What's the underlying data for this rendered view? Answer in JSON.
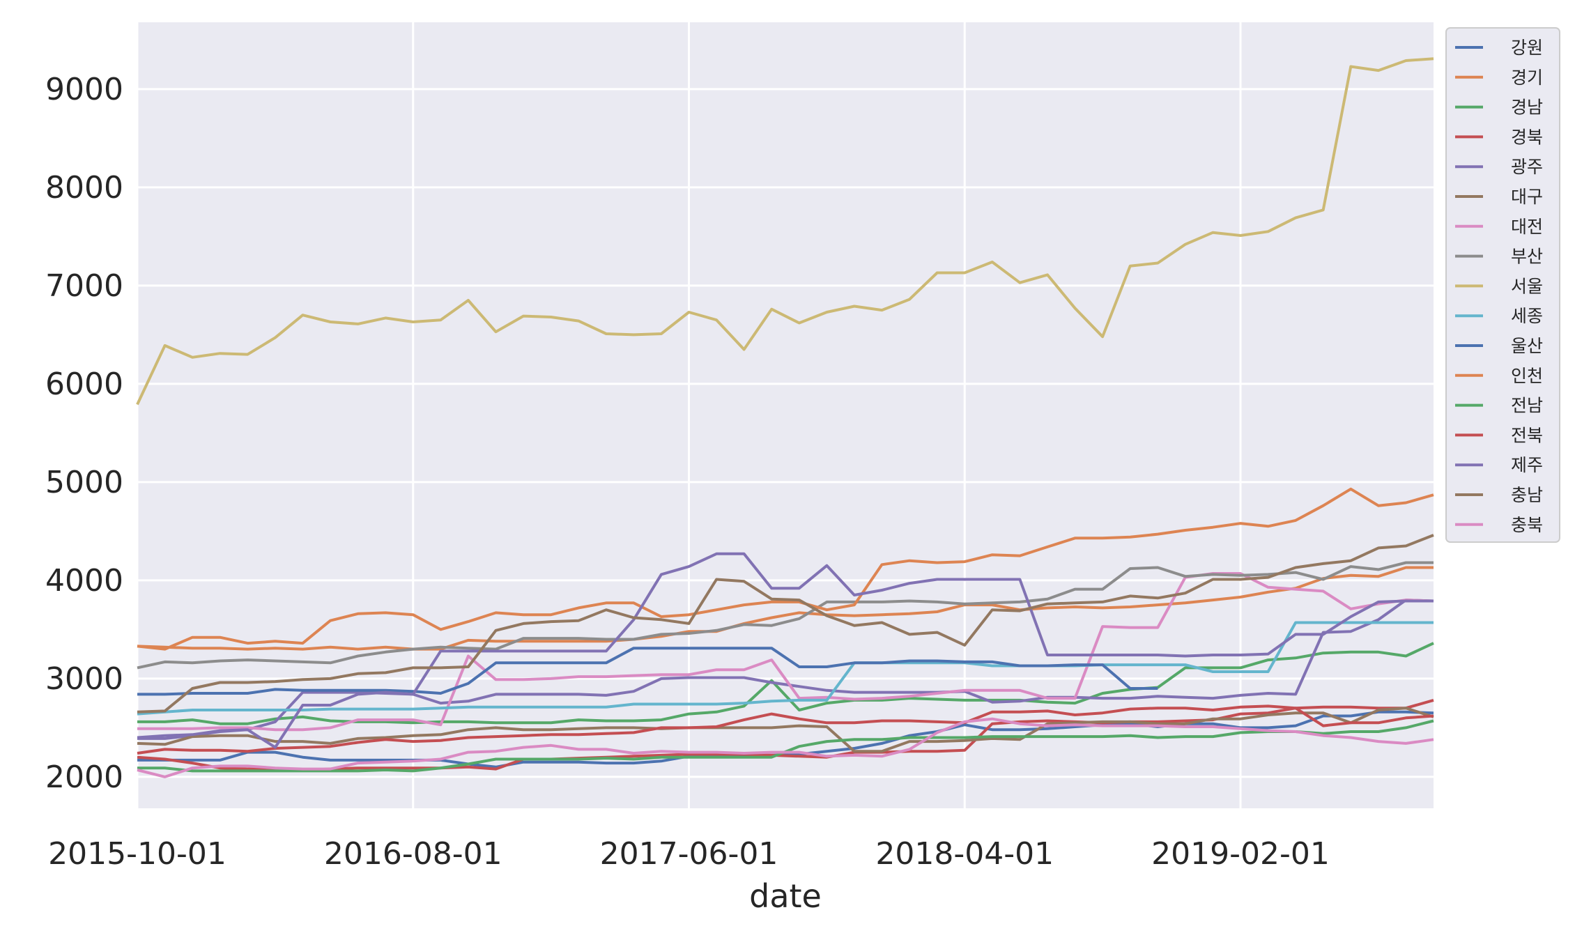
{
  "chart_data": {
    "type": "line",
    "title": "",
    "xlabel": "date",
    "ylabel": "",
    "x_tick_labels": [
      "2015-10-01",
      "2016-08-01",
      "2017-06-01",
      "2018-04-01",
      "2019-02-01"
    ],
    "x_tick_index": [
      0,
      10,
      20,
      30,
      40
    ],
    "x_range": [
      0,
      47
    ],
    "y_ticks": [
      2000,
      3000,
      4000,
      5000,
      6000,
      7000,
      8000,
      9000
    ],
    "ylim": [
      1680,
      9680
    ],
    "grid": true,
    "legend_position": "right",
    "series": [
      {
        "name": "강원",
        "color": "#4c72b0",
        "values": [
          2170,
          2170,
          2170,
          2170,
          2250,
          2250,
          2200,
          2170,
          2170,
          2170,
          2170,
          2170,
          2130,
          2100,
          2150,
          2150,
          2150,
          2140,
          2140,
          2160,
          2210,
          2210,
          2220,
          2220,
          2230,
          2260,
          2290,
          2340,
          2420,
          2460,
          2530,
          2480,
          2480,
          2490,
          2510,
          2530,
          2540,
          2510,
          2540,
          2540,
          2500,
          2500,
          2520,
          2620,
          2620,
          2660,
          2660,
          2650
        ]
      },
      {
        "name": "경기",
        "color": "#dd8452",
        "values": [
          3330,
          3320,
          3310,
          3310,
          3300,
          3310,
          3300,
          3320,
          3300,
          3320,
          3300,
          3300,
          3390,
          3380,
          3380,
          3380,
          3380,
          3380,
          3400,
          3430,
          3480,
          3480,
          3560,
          3620,
          3670,
          3650,
          3640,
          3650,
          3660,
          3680,
          3750,
          3750,
          3700,
          3720,
          3730,
          3720,
          3730,
          3750,
          3770,
          3800,
          3830,
          3880,
          3920,
          4020,
          4050,
          4040,
          4130,
          4130
        ]
      },
      {
        "name": "경남",
        "color": "#55a868",
        "values": [
          2560,
          2560,
          2580,
          2540,
          2540,
          2590,
          2610,
          2570,
          2560,
          2560,
          2550,
          2560,
          2560,
          2550,
          2550,
          2550,
          2580,
          2570,
          2570,
          2580,
          2640,
          2660,
          2720,
          2980,
          2680,
          2750,
          2780,
          2780,
          2800,
          2790,
          2780,
          2780,
          2780,
          2760,
          2750,
          2850,
          2890,
          2910,
          3110,
          3110,
          3110,
          3190,
          3210,
          3260,
          3270,
          3270,
          3230,
          3360
        ]
      },
      {
        "name": "경북",
        "color": "#c44e52",
        "values": [
          2200,
          2180,
          2140,
          2090,
          2080,
          2080,
          2070,
          2080,
          2090,
          2090,
          2090,
          2090,
          2100,
          2080,
          2180,
          2180,
          2190,
          2200,
          2210,
          2220,
          2230,
          2230,
          2230,
          2220,
          2210,
          2200,
          2250,
          2250,
          2260,
          2260,
          2270,
          2540,
          2560,
          2570,
          2560,
          2550,
          2560,
          2560,
          2570,
          2580,
          2640,
          2650,
          2700,
          2710,
          2710,
          2700,
          2700,
          2780
        ]
      },
      {
        "name": "광주",
        "color": "#8172b3",
        "values": [
          2390,
          2390,
          2420,
          2460,
          2480,
          2560,
          2860,
          2860,
          2860,
          2850,
          2840,
          2750,
          2770,
          2840,
          2840,
          2840,
          2840,
          2830,
          2870,
          3000,
          3010,
          3010,
          3010,
          2960,
          2920,
          2880,
          2860,
          2860,
          2860,
          2860,
          2870,
          2760,
          2770,
          2810,
          2810,
          2800,
          2800,
          2820,
          2810,
          2800,
          2830,
          2850,
          2840,
          3470,
          3480,
          3600,
          3800,
          3790
        ]
      },
      {
        "name": "대구",
        "color": "#937860",
        "values": [
          2340,
          2330,
          2410,
          2420,
          2420,
          2360,
          2360,
          2340,
          2390,
          2400,
          2420,
          2430,
          2480,
          2500,
          2480,
          2480,
          2490,
          2500,
          2500,
          2490,
          2500,
          2500,
          2500,
          2500,
          2520,
          2510,
          2260,
          2260,
          2360,
          2360,
          2370,
          2390,
          2380,
          2540,
          2550,
          2560,
          2560,
          2540,
          2540,
          2590,
          2590,
          2630,
          2650,
          2650,
          2550,
          2680,
          2700,
          2610
        ]
      },
      {
        "name": "대전",
        "color": "#da8bc3",
        "values": [
          2490,
          2490,
          2490,
          2500,
          2500,
          2480,
          2480,
          2500,
          2580,
          2580,
          2580,
          2530,
          3230,
          2990,
          2990,
          3000,
          3020,
          3020,
          3030,
          3040,
          3040,
          3090,
          3090,
          3190,
          2800,
          2810,
          2790,
          2800,
          2820,
          2850,
          2880,
          2880,
          2880,
          2800,
          2800,
          3530,
          3520,
          3520,
          4030,
          4070,
          4070,
          3930,
          3910,
          3890,
          3710,
          3760,
          3800,
          3790
        ]
      },
      {
        "name": "부산",
        "color": "#8c8c8c",
        "values": [
          3110,
          3170,
          3160,
          3180,
          3190,
          3180,
          3170,
          3160,
          3230,
          3270,
          3300,
          3320,
          3310,
          3300,
          3410,
          3410,
          3410,
          3400,
          3400,
          3450,
          3460,
          3490,
          3550,
          3540,
          3610,
          3780,
          3780,
          3780,
          3790,
          3780,
          3760,
          3770,
          3780,
          3810,
          3910,
          3910,
          4120,
          4130,
          4040,
          4060,
          4050,
          4060,
          4080,
          4010,
          4140,
          4110,
          4180,
          4180
        ]
      },
      {
        "name": "서울",
        "color": "#ccb974",
        "values": [
          5790,
          6390,
          6270,
          6310,
          6300,
          6470,
          6700,
          6630,
          6610,
          6670,
          6630,
          6650,
          6850,
          6530,
          6690,
          6680,
          6640,
          6510,
          6500,
          6510,
          6730,
          6650,
          6350,
          6760,
          6620,
          6730,
          6790,
          6750,
          6860,
          7130,
          7130,
          7240,
          7030,
          7110,
          6770,
          6480,
          7200,
          7230,
          7420,
          7540,
          7510,
          7550,
          7690,
          7770,
          9230,
          9190,
          9290,
          9310
        ]
      },
      {
        "name": "세종",
        "color": "#64b5cd",
        "values": [
          2640,
          2660,
          2680,
          2680,
          2680,
          2680,
          2680,
          2690,
          2690,
          2690,
          2690,
          2700,
          2710,
          2710,
          2710,
          2710,
          2710,
          2710,
          2740,
          2740,
          2740,
          2740,
          2750,
          2770,
          2780,
          2780,
          3160,
          3160,
          3160,
          3160,
          3160,
          3130,
          3130,
          3130,
          3130,
          3140,
          3140,
          3140,
          3140,
          3070,
          3070,
          3070,
          3570,
          3570,
          3570,
          3570,
          3570,
          3570
        ]
      },
      {
        "name": "울산",
        "color": "#4c72b0",
        "values": [
          2840,
          2840,
          2850,
          2850,
          2850,
          2890,
          2880,
          2880,
          2880,
          2880,
          2870,
          2850,
          2950,
          3160,
          3160,
          3160,
          3160,
          3160,
          3310,
          3310,
          3310,
          3310,
          3310,
          3310,
          3120,
          3120,
          3160,
          3160,
          3180,
          3180,
          3170,
          3170,
          3130,
          3130,
          3140,
          3140,
          2900,
          2900,
          null,
          null,
          null,
          null,
          null,
          null,
          null,
          null,
          null,
          null
        ]
      },
      {
        "name": "인천",
        "color": "#dd8452",
        "values": [
          3330,
          3300,
          3420,
          3420,
          3360,
          3380,
          3360,
          3590,
          3660,
          3670,
          3650,
          3500,
          3580,
          3670,
          3650,
          3650,
          3720,
          3770,
          3770,
          3630,
          3650,
          3700,
          3750,
          3780,
          3780,
          3700,
          3750,
          4160,
          4200,
          4180,
          4190,
          4260,
          4250,
          4340,
          4430,
          4430,
          4440,
          4470,
          4510,
          4540,
          4580,
          4550,
          4610,
          4760,
          4930,
          4760,
          4790,
          4870
        ]
      },
      {
        "name": "전남",
        "color": "#55a868",
        "values": [
          2090,
          2090,
          2060,
          2060,
          2060,
          2060,
          2060,
          2060,
          2060,
          2070,
          2060,
          2090,
          2130,
          2180,
          2180,
          2180,
          2180,
          2190,
          2180,
          2200,
          2200,
          2200,
          2200,
          2200,
          2310,
          2360,
          2380,
          2380,
          2400,
          2400,
          2400,
          2410,
          2410,
          2410,
          2410,
          2410,
          2420,
          2400,
          2410,
          2410,
          2450,
          2460,
          2460,
          2440,
          2460,
          2460,
          2500,
          2570
        ]
      },
      {
        "name": "전북",
        "color": "#c44e52",
        "values": [
          2240,
          2280,
          2270,
          2270,
          2260,
          2290,
          2300,
          2310,
          2350,
          2380,
          2360,
          2370,
          2400,
          2410,
          2420,
          2430,
          2430,
          2440,
          2450,
          2500,
          2500,
          2510,
          2580,
          2640,
          2590,
          2550,
          2550,
          2570,
          2570,
          2560,
          2550,
          2660,
          2660,
          2670,
          2630,
          2650,
          2690,
          2700,
          2700,
          2680,
          2710,
          2720,
          2700,
          2520,
          2550,
          2550,
          2600,
          2620
        ]
      },
      {
        "name": "제주",
        "color": "#8172b3",
        "values": [
          2400,
          2420,
          2430,
          2470,
          2480,
          2300,
          2730,
          2730,
          2840,
          2860,
          2840,
          3280,
          3280,
          3280,
          3280,
          3280,
          3280,
          3280,
          3600,
          4060,
          4140,
          4270,
          4270,
          3920,
          3920,
          4150,
          3850,
          3900,
          3970,
          4010,
          4010,
          4010,
          4010,
          3240,
          3240,
          3240,
          3240,
          3240,
          3230,
          3240,
          3240,
          3250,
          3450,
          3450,
          3630,
          3780,
          3790,
          3790
        ]
      },
      {
        "name": "충남",
        "color": "#937860",
        "values": [
          2660,
          2670,
          2900,
          2960,
          2960,
          2970,
          2990,
          3000,
          3050,
          3060,
          3110,
          3110,
          3120,
          3490,
          3560,
          3580,
          3590,
          3700,
          3620,
          3600,
          3560,
          4010,
          3990,
          3810,
          3800,
          3640,
          3540,
          3570,
          3450,
          3470,
          3340,
          3700,
          3690,
          3760,
          3770,
          3780,
          3840,
          3820,
          3870,
          4010,
          4010,
          4030,
          4130,
          4170,
          4200,
          4330,
          4350,
          4460
        ]
      },
      {
        "name": "충북",
        "color": "#da8bc3",
        "values": [
          2070,
          2000,
          2090,
          2110,
          2110,
          2090,
          2080,
          2080,
          2140,
          2150,
          2160,
          2180,
          2250,
          2260,
          2300,
          2320,
          2280,
          2280,
          2240,
          2260,
          2250,
          2250,
          2240,
          2250,
          2250,
          2210,
          2220,
          2210,
          2280,
          2450,
          2560,
          2590,
          2540,
          2520,
          2530,
          2520,
          2520,
          2520,
          2510,
          2510,
          2490,
          2470,
          2460,
          2420,
          2400,
          2360,
          2340,
          2380
        ]
      }
    ]
  }
}
